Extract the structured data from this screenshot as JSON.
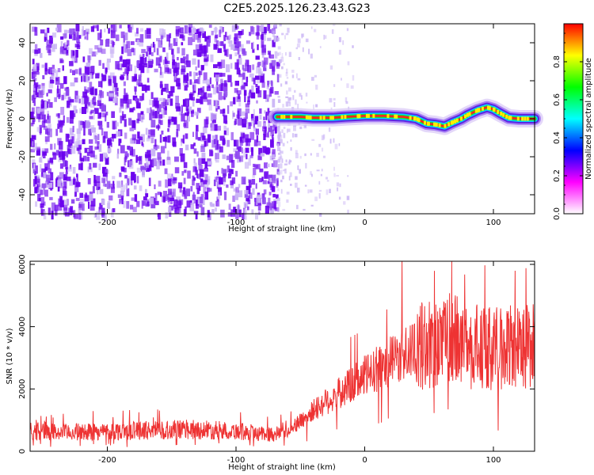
{
  "figure_title": "C2E5.2025.126.23.43.G23",
  "colors": {
    "snr_line": "#ee3333",
    "dot_main": "#6a00ee",
    "dot_light": "#c9b3f5"
  },
  "chart_data": [
    {
      "type": "heatmap",
      "title": "",
      "xlabel": "Height of straight line (km)",
      "ylabel": "Frequency (Hz)",
      "xlim": [
        -260,
        132
      ],
      "ylim": [
        -50,
        50
      ],
      "xticks": [
        -200,
        -100,
        0,
        100
      ],
      "yticks": [
        -40,
        -20,
        0,
        20,
        40
      ],
      "colorbar": {
        "label": "Normalized spectral amplitude",
        "range": [
          0,
          1
        ],
        "ticks": [
          "0.0",
          "0.2",
          "0.4",
          "0.6",
          "0.8"
        ],
        "tick_values": [
          0,
          0.2,
          0.4,
          0.6,
          0.8
        ],
        "colormap": [
          "#ffffff",
          "#ff00ff",
          "#0000ff",
          "#00ffff",
          "#00ff00",
          "#ffff00",
          "#ff0000"
        ]
      },
      "noise_region_x": [
        -260,
        -68
      ],
      "ridge": {
        "x": [
          -68,
          -50,
          -40,
          -25,
          -15,
          0,
          15,
          30,
          40,
          48,
          55,
          62,
          68,
          75,
          80,
          88,
          95,
          100,
          105,
          112,
          120,
          132
        ],
        "freq_hz": [
          1,
          1,
          0.5,
          0.5,
          1,
          1.5,
          1.5,
          1,
          0,
          -2.5,
          -3,
          -4,
          -2,
          0,
          2,
          4.5,
          6,
          5,
          3,
          0.5,
          0,
          0
        ]
      }
    },
    {
      "type": "line",
      "title": "",
      "xlabel": "Height of straight line (km)",
      "ylabel": "SNR (10 * v/v)",
      "xlim": [
        -260,
        132
      ],
      "ylim": [
        0,
        6100
      ],
      "xticks": [
        -200,
        -100,
        0,
        100
      ],
      "yticks": [
        0,
        2000,
        4000,
        6000
      ],
      "series": [
        {
          "x": [
            -260,
            -250,
            -240,
            -220,
            -200,
            -180,
            -160,
            -140,
            -120,
            -100,
            -80,
            -70,
            -60,
            -50,
            -40,
            -30,
            -20,
            -10,
            0,
            10,
            20,
            30,
            40,
            50,
            55,
            60,
            65,
            70,
            75,
            80,
            85,
            90,
            95,
            100,
            110,
            120,
            132
          ],
          "y": [
            550,
            700,
            600,
            620,
            640,
            660,
            680,
            700,
            680,
            650,
            560,
            550,
            700,
            950,
            1300,
            1600,
            1850,
            2150,
            2400,
            2650,
            2900,
            3100,
            3300,
            3450,
            3500,
            3550,
            3600,
            3550,
            3500,
            3400,
            3350,
            3300,
            3300,
            3300,
            3300,
            3350,
            3400
          ]
        }
      ]
    }
  ]
}
